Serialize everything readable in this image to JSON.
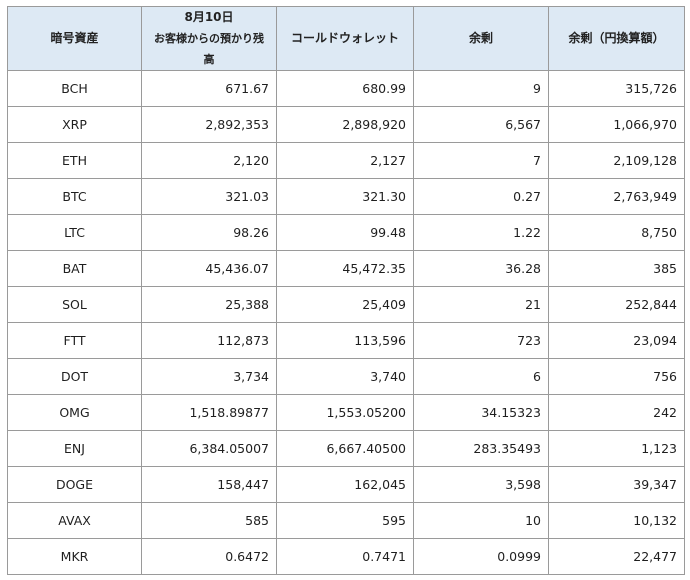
{
  "header": {
    "symbol": "暗号資産",
    "customer_date": "8月10日",
    "customer_label": "お客様からの預かり残高",
    "cold_wallet": "コールドウォレット",
    "surplus": "余剰",
    "surplus_jpy": "余剰（円換算額）"
  },
  "rows": [
    {
      "symbol": "BCH",
      "customer": "671.67",
      "cold": "680.99",
      "surplus": "9",
      "jpy": "315,726"
    },
    {
      "symbol": "XRP",
      "customer": "2,892,353",
      "cold": "2,898,920",
      "surplus": "6,567",
      "jpy": "1,066,970"
    },
    {
      "symbol": "ETH",
      "customer": "2,120",
      "cold": "2,127",
      "surplus": "7",
      "jpy": "2,109,128"
    },
    {
      "symbol": "BTC",
      "customer": "321.03",
      "cold": "321.30",
      "surplus": "0.27",
      "jpy": "2,763,949"
    },
    {
      "symbol": "LTC",
      "customer": "98.26",
      "cold": "99.48",
      "surplus": "1.22",
      "jpy": "8,750"
    },
    {
      "symbol": "BAT",
      "customer": "45,436.07",
      "cold": "45,472.35",
      "surplus": "36.28",
      "jpy": "385"
    },
    {
      "symbol": "SOL",
      "customer": "25,388",
      "cold": "25,409",
      "surplus": "21",
      "jpy": "252,844"
    },
    {
      "symbol": "FTT",
      "customer": "112,873",
      "cold": "113,596",
      "surplus": "723",
      "jpy": "23,094"
    },
    {
      "symbol": "DOT",
      "customer": "3,734",
      "cold": "3,740",
      "surplus": "6",
      "jpy": "756"
    },
    {
      "symbol": "OMG",
      "customer": "1,518.89877",
      "cold": "1,553.05200",
      "surplus": "34.15323",
      "jpy": "242"
    },
    {
      "symbol": "ENJ",
      "customer": "6,384.05007",
      "cold": "6,667.40500",
      "surplus": "283.35493",
      "jpy": "1,123"
    },
    {
      "symbol": "DOGE",
      "customer": "158,447",
      "cold": "162,045",
      "surplus": "3,598",
      "jpy": "39,347"
    },
    {
      "symbol": "AVAX",
      "customer": "585",
      "cold": "595",
      "surplus": "10",
      "jpy": "10,132"
    },
    {
      "symbol": "MKR",
      "customer": "0.6472",
      "cold": "0.7471",
      "surplus": "0.0999",
      "jpy": "22,477"
    }
  ]
}
